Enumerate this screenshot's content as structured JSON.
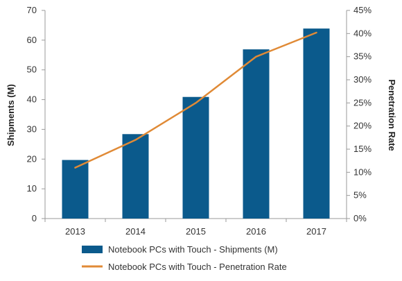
{
  "chart_data": {
    "type": "bar",
    "categories": [
      "2013",
      "2014",
      "2015",
      "2016",
      "2017"
    ],
    "series": [
      {
        "name": "Notebook PCs with Touch - Shipments (M)",
        "type": "bar",
        "axis": "left",
        "values": [
          19.7,
          28.4,
          40.9,
          56.9,
          63.9
        ]
      },
      {
        "name": "Notebook PCs with Touch - Penetration Rate",
        "type": "line",
        "axis": "right",
        "values": [
          0.11,
          0.17,
          0.25,
          0.35,
          0.402
        ]
      }
    ],
    "y_left": {
      "label": "Shipments (M)",
      "range": [
        0,
        70
      ],
      "ticks": [
        0,
        10,
        20,
        30,
        40,
        50,
        60,
        70
      ]
    },
    "y_right": {
      "label": "Penetration Rate",
      "range": [
        0,
        0.45
      ],
      "ticks": [
        "0%",
        "5%",
        "10%",
        "15%",
        "20%",
        "25%",
        "30%",
        "35%",
        "40%",
        "45%"
      ]
    },
    "xlabel": "",
    "title": "",
    "grid": false,
    "legend_position": "bottom",
    "colors": {
      "bar": "#0b5a8c",
      "line": "#e08a36",
      "axis": "#9a9a9a"
    }
  }
}
